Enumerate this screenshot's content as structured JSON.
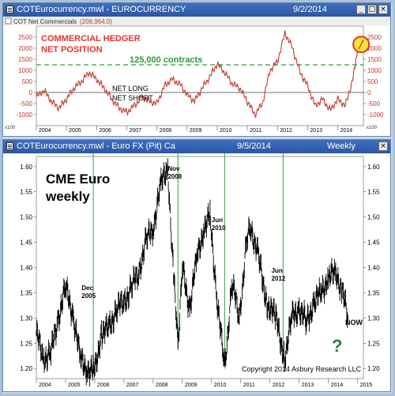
{
  "top_window": {
    "title": "COTEurocurrency.mwl - EUROCURRENCY",
    "date": "9/2/2014",
    "subheader": "COT Net Commercials",
    "subheader_value": "(208,964.0)",
    "annotation_title": "COMMERCIAL HEDGER\nNET POSITION",
    "annotation_line1": "COMMERCIAL HEDGER",
    "annotation_line2": "NET POSITION",
    "threshold_label": "125,000 contracts",
    "net_long": "NET LONG",
    "net_short": "NET SHORT",
    "scale_note": "x100",
    "colors": {
      "series": "#c0392b",
      "threshold": "#2e9a3a",
      "annotation": "#e8342a",
      "highlight": "#f1e43a"
    }
  },
  "bottom_window": {
    "title": "COTEurocurrency.mwl - Euro FX (Pit) Ca",
    "date": "9/5/2014",
    "timeframe": "Weekly",
    "chart_title_line1": "CME Euro",
    "chart_title_line2": "weekly",
    "copyright": "Copyright 2014 Asbury Research LLC",
    "now_label": "NOW",
    "question_mark": "?",
    "colors": {
      "price": "#000000",
      "marker_lines": "#2e9a3a",
      "question": "#2e7d32"
    }
  },
  "chart_data": [
    {
      "type": "line",
      "title": "COT Net Commercials",
      "x_ticks": [
        "2004",
        "2005",
        "2006",
        "2007",
        "2008",
        "2009",
        "2010",
        "2011",
        "2012",
        "2013",
        "2014"
      ],
      "y_ticks": [
        -1000,
        -500,
        0,
        500,
        1000,
        1500,
        2000,
        2500
      ],
      "ylim": [
        -1500,
        3000
      ],
      "threshold": 1250,
      "series": [
        {
          "x": [
            2004.0,
            2004.25,
            2004.5,
            2004.75,
            2005.0,
            2005.25,
            2005.5,
            2005.75,
            2006.0,
            2006.25,
            2006.5,
            2006.75,
            2007.0,
            2007.25,
            2007.5,
            2007.75,
            2008.0,
            2008.25,
            2008.5,
            2008.75,
            2009.0,
            2009.25,
            2009.5,
            2009.75,
            2010.0,
            2010.25,
            2010.5,
            2010.75,
            2011.0,
            2011.25,
            2011.5,
            2011.75,
            2012.0,
            2012.25,
            2012.5,
            2012.75,
            2013.0,
            2013.25,
            2013.5,
            2013.75,
            2014.0,
            2014.25,
            2014.5,
            2014.67
          ],
          "y": [
            -200,
            100,
            -400,
            -700,
            -300,
            200,
            500,
            900,
            600,
            200,
            -300,
            -700,
            -900,
            -600,
            -200,
            -400,
            -500,
            300,
            600,
            400,
            -100,
            -400,
            200,
            700,
            1300,
            900,
            400,
            200,
            -400,
            -1000,
            -500,
            1000,
            1400,
            2700,
            2000,
            900,
            300,
            -600,
            -300,
            -800,
            -300,
            -600,
            600,
            2100
          ]
        }
      ]
    },
    {
      "type": "line",
      "title": "CME Euro weekly",
      "x_ticks": [
        "2004",
        "2005",
        "2006",
        "2007",
        "2008",
        "2009",
        "2010",
        "2011",
        "2012",
        "2013",
        "2014",
        "2015"
      ],
      "y_ticks": [
        1.2,
        1.25,
        1.3,
        1.35,
        1.4,
        1.45,
        1.5,
        1.55,
        1.6
      ],
      "ylim": [
        1.18,
        1.62
      ],
      "series": [
        {
          "x": [
            2004.0,
            2004.25,
            2004.5,
            2004.75,
            2005.0,
            2005.25,
            2005.5,
            2005.75,
            2005.95,
            2006.25,
            2006.5,
            2006.75,
            2007.0,
            2007.25,
            2007.5,
            2007.75,
            2008.0,
            2008.25,
            2008.5,
            2008.7,
            2008.85,
            2009.0,
            2009.25,
            2009.5,
            2009.75,
            2009.95,
            2010.2,
            2010.45,
            2010.7,
            2010.95,
            2011.2,
            2011.35,
            2011.6,
            2011.9,
            2012.2,
            2012.5,
            2012.75,
            2013.0,
            2013.25,
            2013.5,
            2013.75,
            2014.0,
            2014.25,
            2014.45,
            2014.67
          ],
          "y": [
            1.27,
            1.22,
            1.23,
            1.3,
            1.36,
            1.31,
            1.22,
            1.2,
            1.19,
            1.27,
            1.28,
            1.32,
            1.33,
            1.36,
            1.39,
            1.45,
            1.48,
            1.56,
            1.6,
            1.38,
            1.25,
            1.4,
            1.32,
            1.42,
            1.48,
            1.5,
            1.33,
            1.2,
            1.37,
            1.3,
            1.45,
            1.48,
            1.42,
            1.33,
            1.3,
            1.22,
            1.3,
            1.32,
            1.29,
            1.33,
            1.35,
            1.38,
            1.39,
            1.36,
            1.3
          ]
        }
      ],
      "annotations": [
        "Dec 2005",
        "Nov 2008",
        "Jun 2010",
        "Jun 2012"
      ]
    }
  ],
  "labels": {
    "dec2005": "Dec\n2005",
    "nov2008": "Nov\n2008",
    "jun2010": "Jun\n2010",
    "jun2012": "Jun\n2012"
  }
}
